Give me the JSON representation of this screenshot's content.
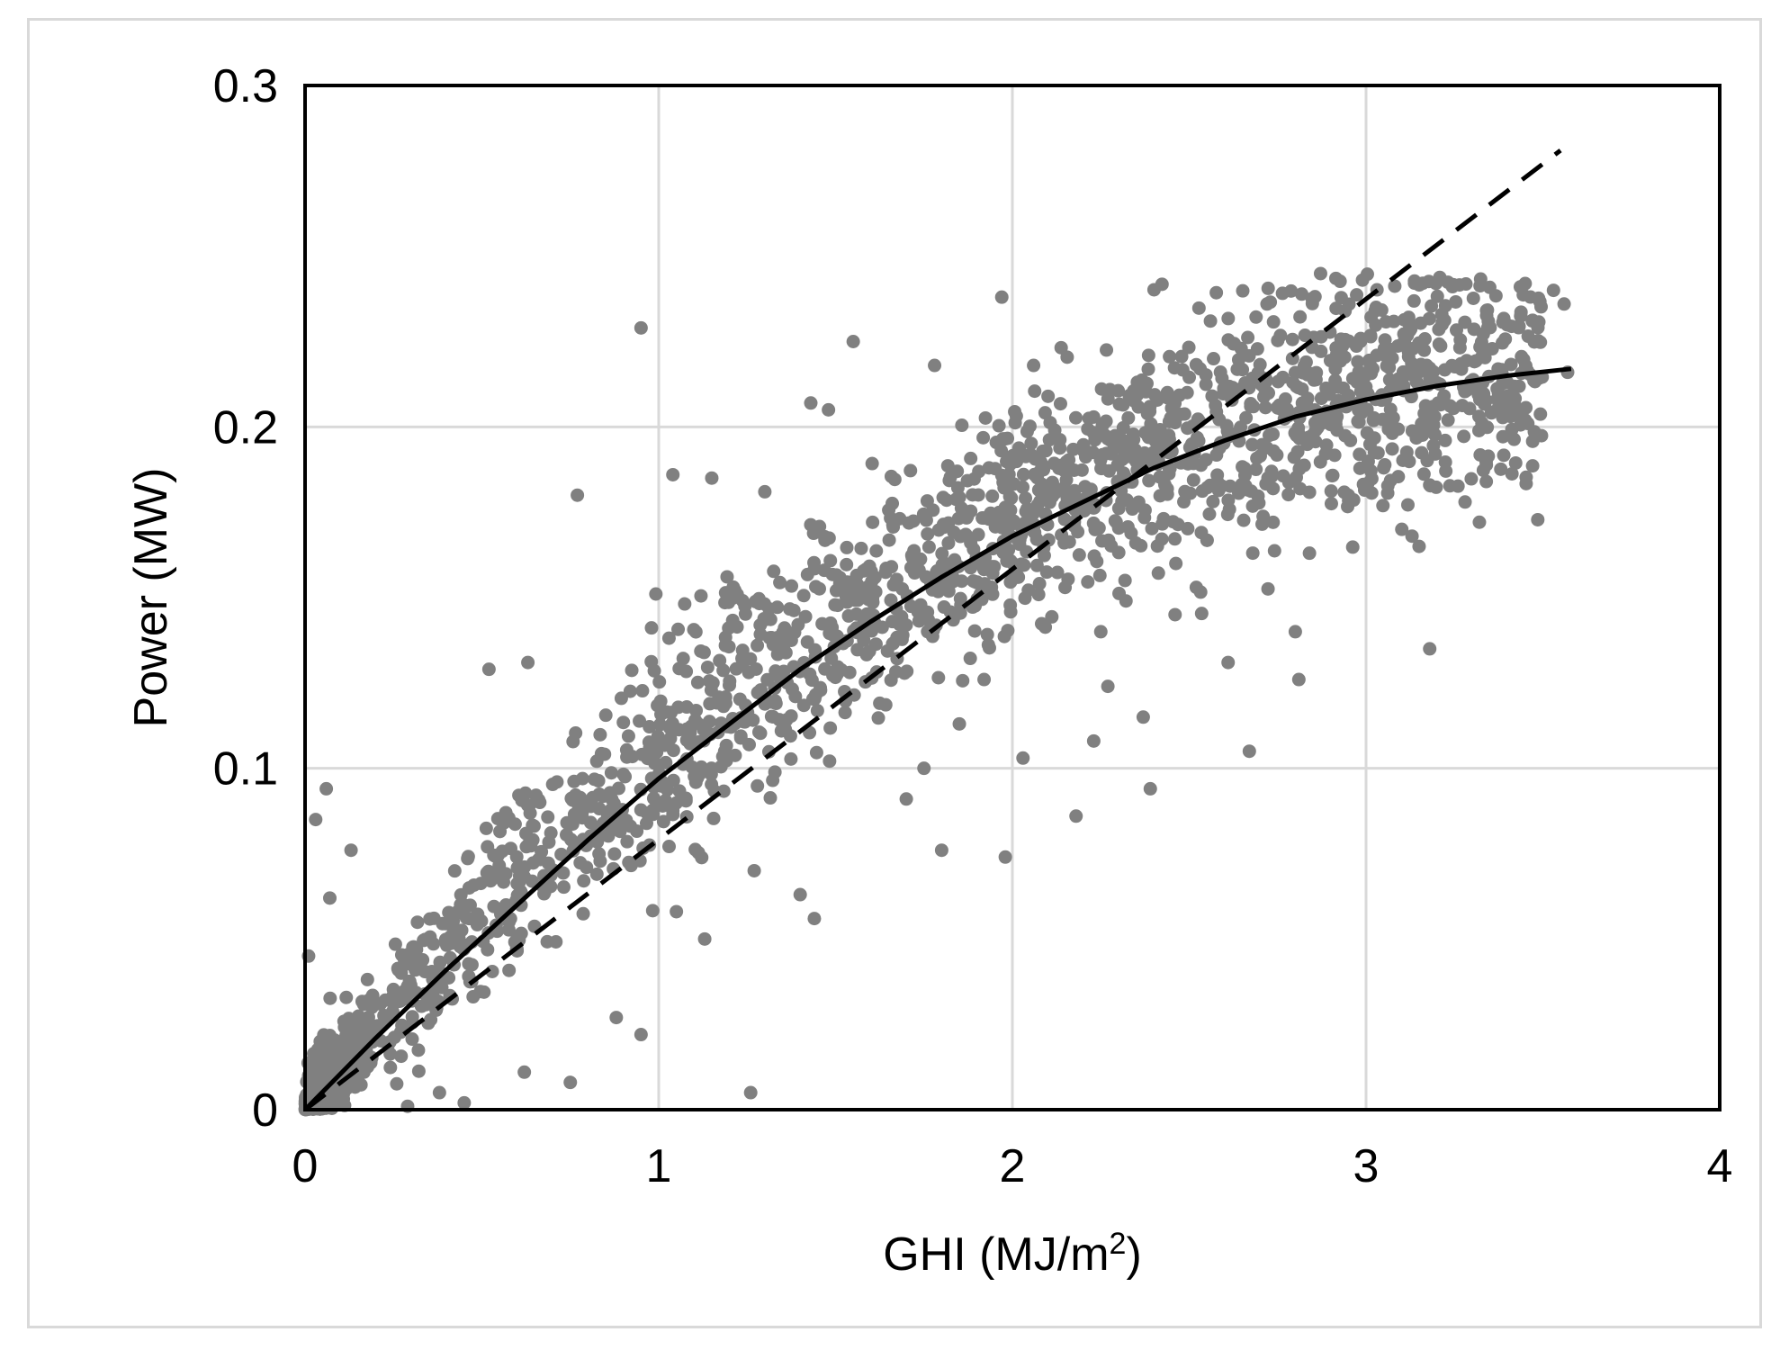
{
  "chart_data": {
    "type": "scatter",
    "title": "",
    "xlabel": "GHI (MJ/m",
    "xlabel_superscript": "2",
    "xlabel_suffix": ")",
    "ylabel": "Power (MW)",
    "xlim": [
      0,
      4
    ],
    "ylim": [
      0,
      0.3
    ],
    "x_ticks": [
      0,
      1,
      2,
      3,
      4
    ],
    "x_tick_labels": [
      "0",
      "1",
      "2",
      "3",
      "4"
    ],
    "y_ticks": [
      0,
      0.1,
      0.2,
      0.3
    ],
    "y_tick_labels": [
      "0",
      "0.1",
      "0.2",
      "0.3"
    ],
    "grid": true,
    "legend": "none",
    "colors": {
      "points": "#808080",
      "grid": "#d9d9d9",
      "axes": "#000000",
      "fit_lines": "#000000",
      "frame": "#d9d9d9"
    },
    "series": [
      {
        "style": "scatter",
        "points": [
          [
            0.95,
            0.229
          ],
          [
            1.97,
            0.238
          ],
          [
            1.55,
            0.225
          ],
          [
            0.77,
            0.18
          ],
          [
            1.43,
            0.207
          ],
          [
            1.48,
            0.205
          ],
          [
            1.26,
            0.005
          ],
          [
            0.95,
            0.022
          ],
          [
            3.18,
            0.135
          ],
          [
            3.15,
            0.165
          ],
          [
            3.13,
            0.168
          ],
          [
            2.67,
            0.105
          ],
          [
            2.8,
            0.14
          ],
          [
            2.61,
            0.131
          ],
          [
            2.81,
            0.126
          ],
          [
            2.37,
            0.115
          ],
          [
            2.39,
            0.094
          ],
          [
            2.18,
            0.086
          ],
          [
            2.23,
            0.108
          ],
          [
            1.98,
            0.074
          ],
          [
            2.03,
            0.103
          ],
          [
            1.8,
            0.076
          ],
          [
            0.63,
            0.131
          ],
          [
            0.52,
            0.129
          ],
          [
            0.06,
            0.094
          ],
          [
            0.03,
            0.085
          ],
          [
            0.01,
            0.045
          ],
          [
            0.29,
            0.001
          ],
          [
            0.07,
            0.062
          ],
          [
            0.13,
            0.076
          ],
          [
            3.53,
            0.24
          ],
          [
            3.45,
            0.242
          ],
          [
            3.56,
            0.236
          ],
          [
            3.57,
            0.216
          ],
          [
            3.45,
            0.202
          ],
          [
            3.18,
            0.183
          ],
          [
            3.34,
            0.184
          ],
          [
            3.28,
            0.178
          ],
          [
            2.99,
            0.243
          ],
          [
            2.72,
            0.236
          ],
          [
            2.56,
            0.231
          ],
          [
            1.78,
            0.218
          ],
          [
            2.06,
            0.218
          ],
          [
            1.44,
            0.056
          ],
          [
            1.4,
            0.063
          ],
          [
            1.27,
            0.07
          ],
          [
            1.13,
            0.05
          ],
          [
            1.05,
            0.058
          ],
          [
            0.75,
            0.008
          ],
          [
            0.45,
            0.002
          ],
          [
            0.38,
            0.005
          ],
          [
            0.88,
            0.027
          ],
          [
            0.62,
            0.011
          ],
          [
            1.3,
            0.181
          ],
          [
            1.04,
            0.186
          ],
          [
            1.15,
            0.185
          ],
          [
            1.7,
            0.091
          ],
          [
            1.75,
            0.1
          ],
          [
            1.85,
            0.113
          ],
          [
            1.92,
            0.126
          ],
          [
            2.25,
            0.14
          ],
          [
            2.46,
            0.145
          ],
          [
            2.52,
            0.153
          ],
          [
            2.27,
            0.124
          ],
          [
            2.84,
            0.163
          ],
          [
            2.95,
            0.18
          ],
          [
            3.05,
            0.188
          ]
        ]
      },
      {
        "style": "solid-line",
        "points": [
          [
            0.0,
            0.0
          ],
          [
            0.2,
            0.021
          ],
          [
            0.4,
            0.041
          ],
          [
            0.6,
            0.06
          ],
          [
            0.8,
            0.079
          ],
          [
            1.0,
            0.097
          ],
          [
            1.2,
            0.113
          ],
          [
            1.4,
            0.129
          ],
          [
            1.6,
            0.143
          ],
          [
            1.8,
            0.156
          ],
          [
            2.0,
            0.168
          ],
          [
            2.2,
            0.178
          ],
          [
            2.4,
            0.188
          ],
          [
            2.6,
            0.196
          ],
          [
            2.8,
            0.203
          ],
          [
            3.0,
            0.208
          ],
          [
            3.2,
            0.212
          ],
          [
            3.4,
            0.215
          ],
          [
            3.58,
            0.217
          ]
        ]
      },
      {
        "style": "dashed-line",
        "points": [
          [
            0.0,
            0.0
          ],
          [
            3.55,
            0.281
          ]
        ]
      }
    ]
  }
}
